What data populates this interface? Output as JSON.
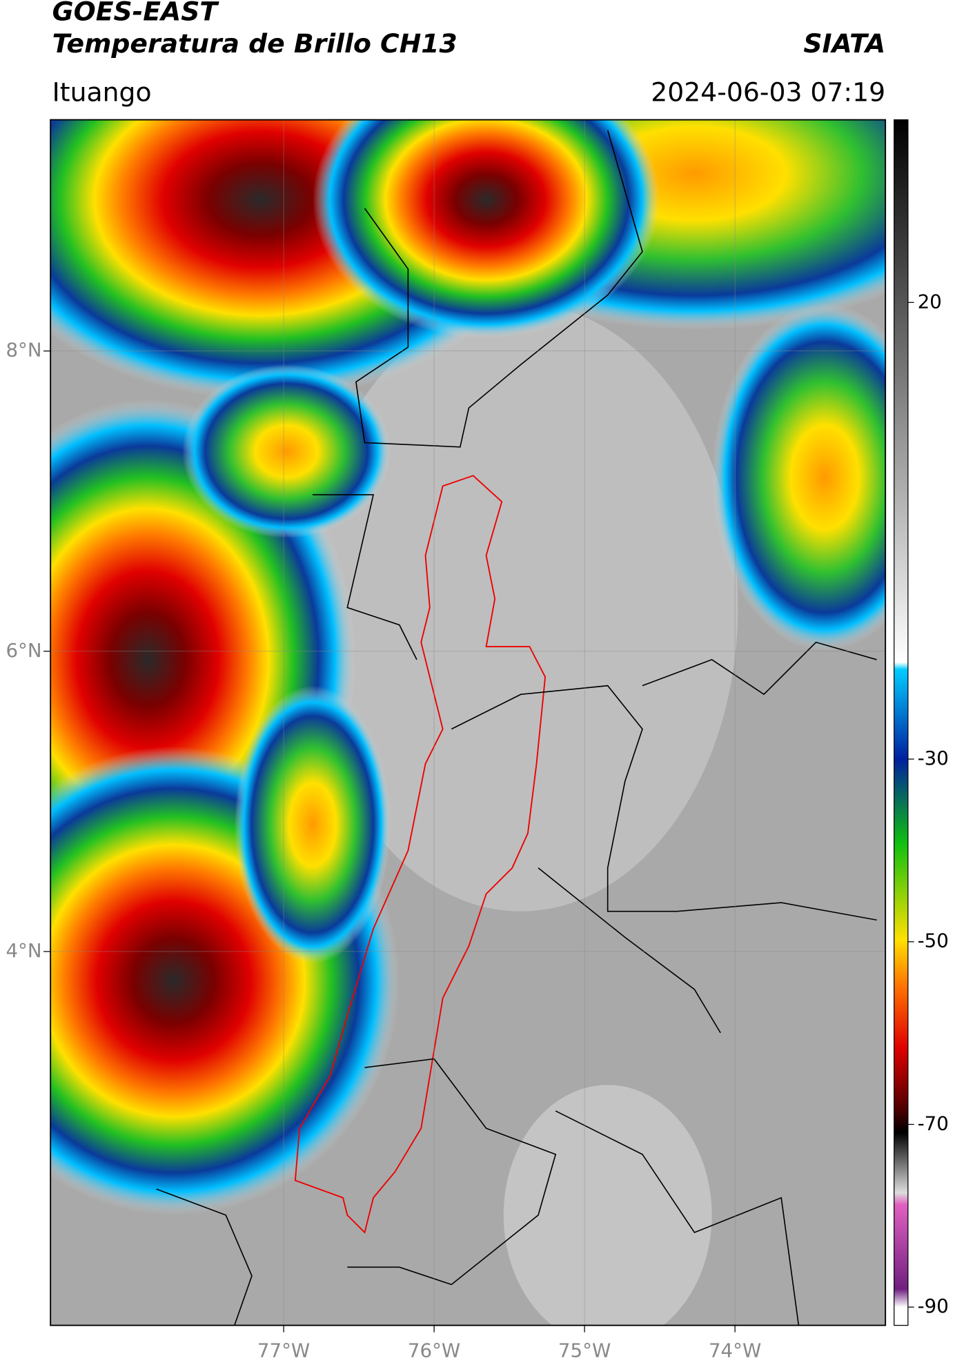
{
  "header": {
    "title": "GOES-EAST",
    "subtitle": "Temperatura de Brillo CH13",
    "brand": "SIATA",
    "location": "Ituango",
    "datetime": "2024-06-03 07:19"
  },
  "map": {
    "xlim": [
      -78.55,
      -73.0
    ],
    "ylim": [
      1.51,
      9.54
    ],
    "xticks": [
      {
        "value": -77,
        "label": "77°W"
      },
      {
        "value": -76,
        "label": "76°W"
      },
      {
        "value": -75,
        "label": "75°W"
      },
      {
        "value": -74,
        "label": "74°W"
      }
    ],
    "yticks": [
      {
        "value": 8,
        "label": "8°N"
      },
      {
        "value": 6,
        "label": "6°N"
      },
      {
        "value": 4,
        "label": "4°N"
      }
    ]
  },
  "colorbar": {
    "ylim": [
      -92,
      40
    ],
    "yticks": [
      20,
      -30,
      -50,
      -70,
      -90
    ]
  }
}
